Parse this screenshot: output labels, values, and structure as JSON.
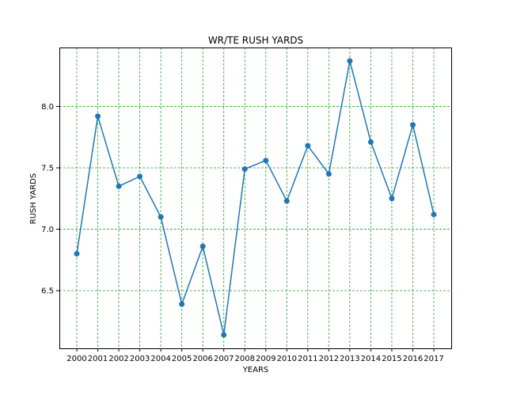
{
  "chart_data": {
    "type": "line",
    "title": "WR/TE RUSH YARDS",
    "xlabel": "YEARS",
    "ylabel": "RUSH YARDS",
    "categories": [
      "2000",
      "2001",
      "2002",
      "2003",
      "2004",
      "2005",
      "2006",
      "2007",
      "2008",
      "2009",
      "2010",
      "2011",
      "2012",
      "2013",
      "2014",
      "2015",
      "2016",
      "2017"
    ],
    "series": [
      {
        "values": [
          6.8,
          7.92,
          7.35,
          7.43,
          7.1,
          6.39,
          6.86,
          6.14,
          7.49,
          7.56,
          7.23,
          7.68,
          7.45,
          8.37,
          7.71,
          7.25,
          7.85,
          7.12
        ],
        "color": "#1f77b4"
      }
    ],
    "yticks": [
      6.5,
      7.0,
      7.5,
      8.0
    ],
    "ytick_labels": [
      "6.5",
      "7.0",
      "7.5",
      "8.0"
    ],
    "ylim": [
      6.03,
      8.48
    ],
    "grid": true,
    "grid_color": "#2ca02c"
  }
}
